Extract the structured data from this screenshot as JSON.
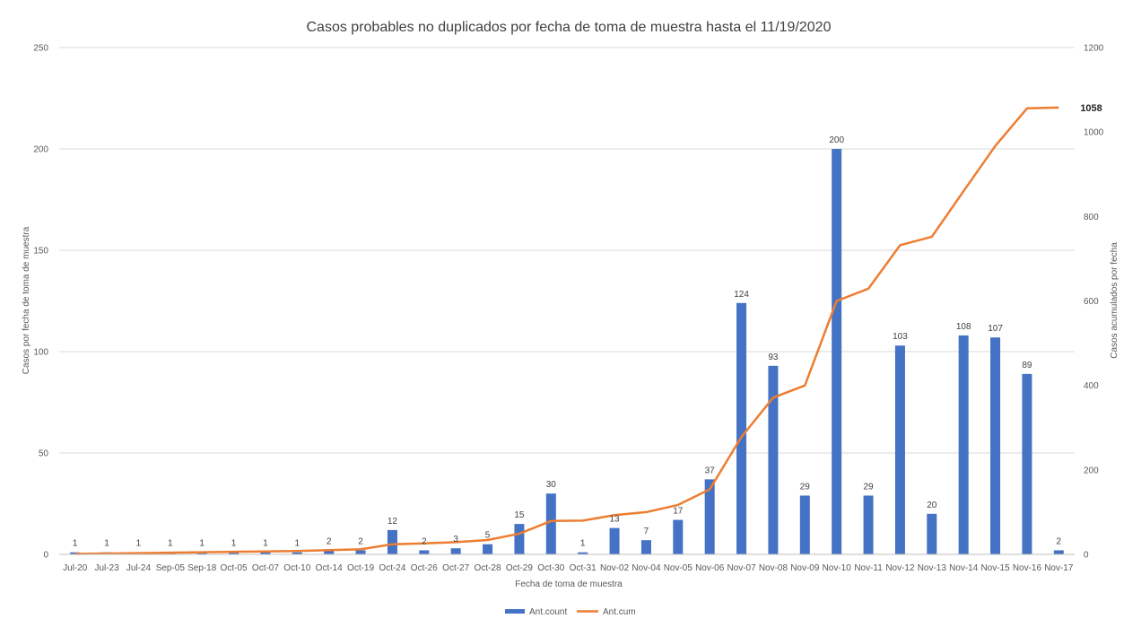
{
  "chart_data": {
    "type": "bar",
    "title": "Casos probables no duplicados por fecha de toma de muestra hasta el 11/19/2020",
    "xlabel": "Fecha de toma de muestra",
    "ylabel": "Casos por fecha de toma de muestra",
    "y2label": "Casos acumulados por fecha",
    "ylim": [
      0,
      250
    ],
    "yticks": [
      0,
      50,
      100,
      150,
      200,
      250
    ],
    "y2lim": [
      0,
      1200
    ],
    "y2ticks": [
      0,
      200,
      400,
      600,
      800,
      1000,
      1200
    ],
    "grid": true,
    "legend_position": "bottom",
    "categories": [
      "Jul-20",
      "Jul-23",
      "Jul-24",
      "Sep-05",
      "Sep-18",
      "Oct-05",
      "Oct-07",
      "Oct-10",
      "Oct-14",
      "Oct-19",
      "Oct-24",
      "Oct-26",
      "Oct-27",
      "Oct-28",
      "Oct-29",
      "Oct-30",
      "Oct-31",
      "Nov-02",
      "Nov-04",
      "Nov-05",
      "Nov-06",
      "Nov-07",
      "Nov-08",
      "Nov-09",
      "Nov-10",
      "Nov-11",
      "Nov-12",
      "Nov-13",
      "Nov-14",
      "Nov-15",
      "Nov-16",
      "Nov-17"
    ],
    "series": [
      {
        "name": "Ant.count",
        "type": "bar",
        "axis": "left",
        "color": "#4472C4",
        "values": [
          1,
          1,
          1,
          1,
          1,
          1,
          1,
          1,
          2,
          2,
          12,
          2,
          3,
          5,
          15,
          30,
          1,
          13,
          7,
          17,
          37,
          124,
          93,
          29,
          200,
          29,
          103,
          20,
          108,
          107,
          89,
          2
        ]
      },
      {
        "name": "Ant.cum",
        "type": "line",
        "axis": "right",
        "color": "#ED7D31",
        "values": [
          1,
          2,
          3,
          4,
          5,
          6,
          7,
          8,
          10,
          12,
          24,
          26,
          29,
          34,
          49,
          79,
          80,
          93,
          100,
          117,
          154,
          278,
          371,
          400,
          600,
          629,
          732,
          752,
          860,
          967,
          1056,
          1058
        ],
        "labeled_value": "1058"
      }
    ],
    "bar_labels": [
      "1",
      "1",
      "1",
      "1",
      "1",
      "1",
      "1",
      "1",
      "2",
      "2",
      "12",
      "2",
      "3",
      "5",
      "15",
      "30",
      "1",
      "13",
      "7",
      "17",
      "37",
      "124",
      "93",
      "29",
      "200",
      "29",
      "103",
      "20",
      "108",
      "107",
      "89",
      "2"
    ]
  }
}
